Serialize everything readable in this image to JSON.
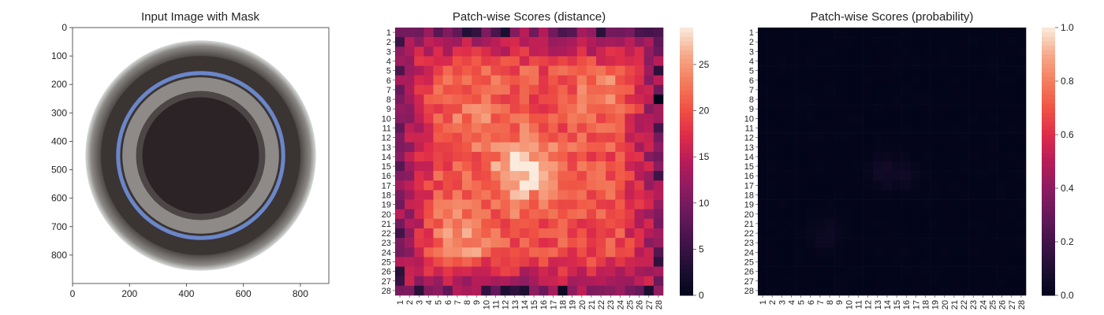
{
  "chart_data": [
    {
      "type": "image",
      "title": "Input Image with Mask",
      "xlim": [
        0,
        900
      ],
      "ylim": [
        900,
        0
      ],
      "xticks": [
        0,
        200,
        400,
        600,
        800
      ],
      "yticks": [
        0,
        100,
        200,
        300,
        400,
        500,
        600,
        700,
        800
      ],
      "image": {
        "subject": "jar-top-down",
        "center": [
          450,
          450
        ],
        "outer_radius": 405,
        "dark_rim_radius": 350,
        "blue_ring_radius": 290,
        "inner_radius": 205,
        "colors": {
          "background": "#ffffff",
          "rim": "#4a4544",
          "ring": "#6b86c9",
          "inner": "#2b2326",
          "glass": "#8d8a88"
        }
      }
    },
    {
      "type": "heatmap",
      "title": "Patch-wise Scores (distance)",
      "rows": 28,
      "cols": 28,
      "row_labels": [
        "1",
        "2",
        "3",
        "4",
        "5",
        "6",
        "7",
        "8",
        "9",
        "10",
        "11",
        "12",
        "13",
        "14",
        "15",
        "16",
        "17",
        "18",
        "19",
        "20",
        "21",
        "22",
        "23",
        "24",
        "25",
        "26",
        "27",
        "28"
      ],
      "col_labels": [
        "1",
        "2",
        "3",
        "4",
        "5",
        "6",
        "7",
        "8",
        "9",
        "10",
        "11",
        "12",
        "13",
        "14",
        "15",
        "16",
        "17",
        "18",
        "19",
        "20",
        "21",
        "22",
        "23",
        "24",
        "25",
        "26",
        "27",
        "28"
      ],
      "colorbar": {
        "min": 0,
        "max": 29,
        "ticks": [
          0,
          5,
          10,
          15,
          20,
          25
        ],
        "cmap": "rocket"
      },
      "pattern": {
        "border": 12,
        "interior": 20,
        "hotspots": [
          {
            "row": 15.5,
            "col": 14.0,
            "peak": 28,
            "spread": 2.5
          },
          {
            "row": 22.5,
            "col": 8.0,
            "peak": 25,
            "spread": 2.2
          },
          {
            "row": 9.0,
            "col": 9.0,
            "peak": 23,
            "spread": 2.5
          },
          {
            "row": 7.0,
            "col": 22.0,
            "peak": 24,
            "spread": 1.8
          }
        ]
      }
    },
    {
      "type": "heatmap",
      "title": "Patch-wise Scores (probability)",
      "rows": 28,
      "cols": 28,
      "row_labels": [
        "1",
        "2",
        "3",
        "4",
        "5",
        "6",
        "7",
        "8",
        "9",
        "10",
        "11",
        "12",
        "13",
        "14",
        "15",
        "16",
        "17",
        "18",
        "19",
        "20",
        "21",
        "22",
        "23",
        "24",
        "25",
        "26",
        "27",
        "28"
      ],
      "col_labels": [
        "1",
        "2",
        "3",
        "4",
        "5",
        "6",
        "7",
        "8",
        "9",
        "10",
        "11",
        "12",
        "13",
        "14",
        "15",
        "16",
        "17",
        "18",
        "19",
        "20",
        "21",
        "22",
        "23",
        "24",
        "25",
        "26",
        "27",
        "28"
      ],
      "colorbar": {
        "min": 0.0,
        "max": 1.0,
        "ticks": [
          0.0,
          0.2,
          0.4,
          0.6,
          0.8,
          1.0
        ],
        "tick_labels": [
          "0.0",
          "0.2",
          "0.4",
          "0.6",
          "0.8",
          "1.0"
        ],
        "cmap": "rocket"
      },
      "pattern": {
        "base": 0.0,
        "hotspots": [
          {
            "row": 15.5,
            "col": 14.0,
            "peak": 0.05,
            "spread": 1.2
          },
          {
            "row": 22.0,
            "col": 7.5,
            "peak": 0.05,
            "spread": 1.0
          },
          {
            "row": 16.0,
            "col": 16.0,
            "peak": 0.04,
            "spread": 0.8
          }
        ]
      }
    }
  ]
}
